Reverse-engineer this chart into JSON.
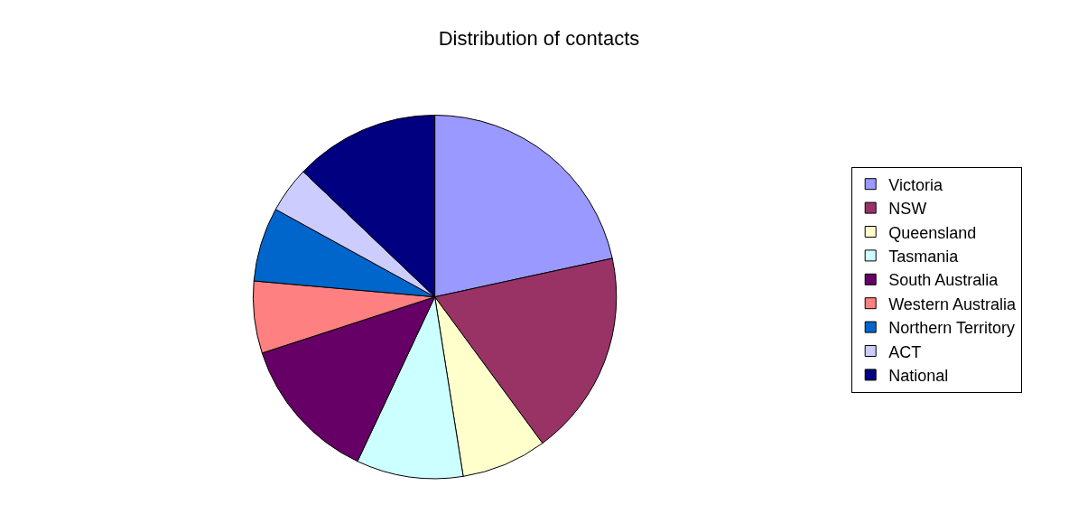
{
  "chart_data": {
    "type": "pie",
    "title": "Distribution of contacts",
    "categories": [
      "Victoria",
      "NSW",
      "Queensland",
      "Tasmania",
      "South Australia",
      "Western Australia",
      "Northern Territory",
      "ACT",
      "National"
    ],
    "values": [
      21.6,
      18.3,
      7.6,
      9.5,
      13,
      6.4,
      6.6,
      4.1,
      12.9
    ],
    "colors": [
      "#9999ff",
      "#993366",
      "#ffffcc",
      "#ccffff",
      "#660066",
      "#ff8080",
      "#0066cc",
      "#ccccff",
      "#000080"
    ],
    "legend": "right"
  }
}
